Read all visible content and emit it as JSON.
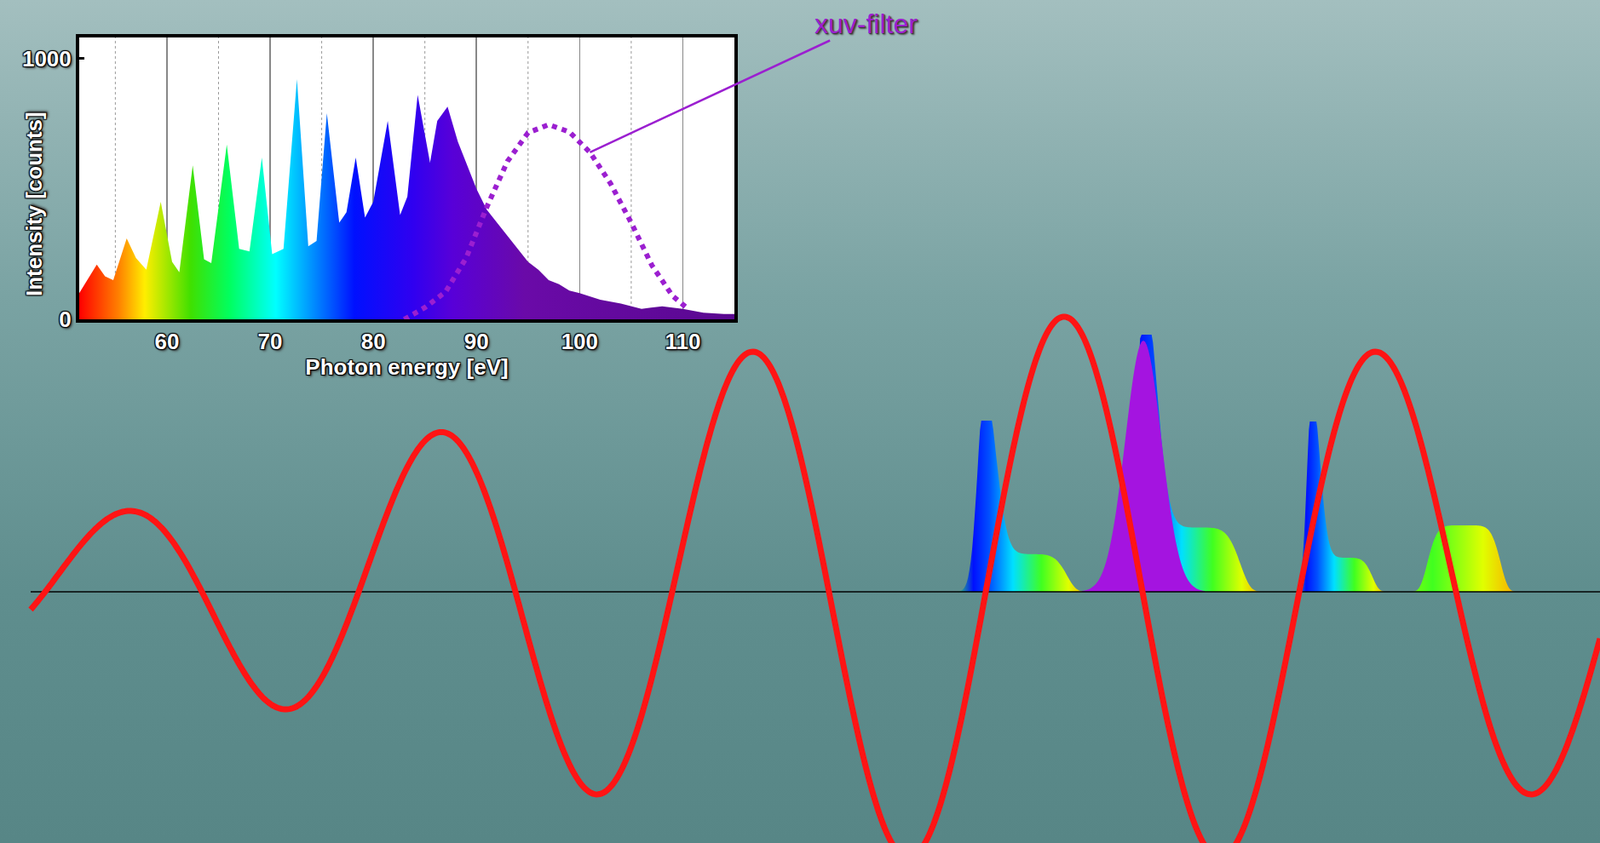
{
  "chart_data": {
    "type": "area",
    "x_label": "Photon energy [eV]",
    "y_label": "Intensity [counts]",
    "xlim": [
      51.5,
      115
    ],
    "xticks": [
      60,
      70,
      80,
      90,
      100,
      110
    ],
    "ylim": [
      0,
      1080
    ],
    "yticks": [
      0,
      1000
    ],
    "grid": "x",
    "series": [
      {
        "type": "area",
        "x": [
          51.5,
          52.3,
          53.2,
          54.0,
          54.8,
          56.1,
          57.0,
          58.0,
          59.4,
          60.5,
          61.2,
          62.5,
          63.6,
          64.3,
          65.8,
          67.0,
          68.0,
          69.2,
          70.2,
          71.3,
          72.6,
          73.7,
          74.5,
          75.5,
          76.7,
          77.4,
          78.3,
          79.2,
          80.0,
          81.4,
          82.6,
          83.3,
          84.3,
          85.5,
          86.2,
          87.2,
          88.2,
          89.0,
          90.0,
          91.0,
          92.0,
          93.0,
          94.0,
          95.0,
          96.0,
          97.0,
          98.0,
          99.0,
          100.0,
          102.0,
          104.0,
          106.0,
          108.0,
          110.0,
          112.0,
          114.0,
          115.0
        ],
        "values": [
          100,
          150,
          210,
          165,
          150,
          310,
          235,
          190,
          450,
          220,
          180,
          590,
          230,
          215,
          670,
          270,
          260,
          620,
          250,
          270,
          920,
          280,
          300,
          790,
          370,
          410,
          620,
          390,
          450,
          760,
          400,
          470,
          860,
          600,
          760,
          815,
          680,
          600,
          500,
          420,
          370,
          320,
          270,
          220,
          190,
          150,
          135,
          110,
          100,
          75,
          60,
          40,
          50,
          40,
          25,
          20,
          20
        ]
      },
      {
        "name": "xuv-filter",
        "type": "line",
        "color": "#9b1fd0",
        "line_style": "dotted",
        "x": [
          83,
          85,
          87,
          89,
          91,
          93,
          95,
          97,
          99,
          101,
          103,
          105,
          107,
          109,
          110.5
        ],
        "values": [
          0,
          45,
          105,
          235,
          430,
          605,
          715,
          746,
          718,
          640,
          520,
          370,
          207,
          90,
          40
        ]
      }
    ]
  }
}
